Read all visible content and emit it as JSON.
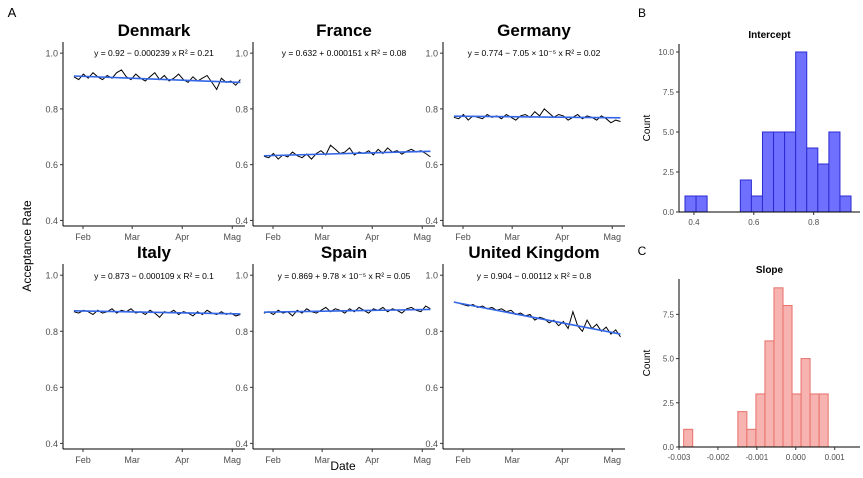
{
  "figure": {
    "panel_letters": [
      "A",
      "B",
      "C"
    ],
    "y_axis_label": "Acceptance Rate",
    "x_axis_label": "Date",
    "y_tick_labels": [
      "0.4",
      "0.6",
      "0.8",
      "1.0"
    ],
    "x_tick_labels": [
      "Feb",
      "Mar",
      "Apr",
      "Mag"
    ],
    "fit_line_color": "#3366e6",
    "series_line_color": "#000000"
  },
  "chart_data": [
    {
      "type": "line",
      "layout": "3x2 facets",
      "ylim": [
        0.38,
        1.04
      ],
      "y_ticks": [
        0.4,
        0.6,
        0.8,
        1.0
      ],
      "x_ticks": [
        "Feb",
        "Mar",
        "Apr",
        "Mag"
      ],
      "ylabel": "Acceptance Rate",
      "xlabel": "Date",
      "grid": false,
      "facets": [
        {
          "name": "Denmark",
          "equation": "y = 0.92 − 0.000239 x   R² = 0.21",
          "fit_start": 0.918,
          "fit_end": 0.895,
          "series": [
            0.915,
            0.905,
            0.925,
            0.91,
            0.93,
            0.915,
            0.905,
            0.92,
            0.91,
            0.93,
            0.94,
            0.915,
            0.905,
            0.925,
            0.91,
            0.9,
            0.915,
            0.93,
            0.905,
            0.92,
            0.9,
            0.91,
            0.925,
            0.905,
            0.895,
            0.915,
            0.9,
            0.91,
            0.92,
            0.895,
            0.87,
            0.91,
            0.895,
            0.9,
            0.885,
            0.905
          ]
        },
        {
          "name": "France",
          "equation": "y = 0.632 + 0.000151 x   R² = 0.08",
          "fit_start": 0.632,
          "fit_end": 0.648,
          "series": [
            0.63,
            0.625,
            0.64,
            0.62,
            0.635,
            0.628,
            0.645,
            0.632,
            0.625,
            0.638,
            0.62,
            0.64,
            0.65,
            0.635,
            0.67,
            0.655,
            0.64,
            0.645,
            0.66,
            0.635,
            0.645,
            0.64,
            0.65,
            0.635,
            0.655,
            0.64,
            0.66,
            0.645,
            0.65,
            0.638,
            0.648,
            0.655,
            0.645,
            0.65,
            0.64,
            0.628
          ]
        },
        {
          "name": "Germany",
          "equation": "y = 0.774 − 7.05 × 10⁻⁵ x   R² = 0.02",
          "fit_start": 0.774,
          "fit_end": 0.768,
          "series": [
            0.77,
            0.765,
            0.78,
            0.76,
            0.775,
            0.77,
            0.765,
            0.78,
            0.77,
            0.775,
            0.765,
            0.78,
            0.77,
            0.76,
            0.775,
            0.78,
            0.77,
            0.79,
            0.775,
            0.8,
            0.785,
            0.77,
            0.78,
            0.775,
            0.76,
            0.77,
            0.78,
            0.765,
            0.775,
            0.77,
            0.76,
            0.775,
            0.765,
            0.75,
            0.76,
            0.755
          ]
        },
        {
          "name": "Italy",
          "equation": "y = 0.873 − 0.000109 x   R² = 0.1",
          "fit_start": 0.873,
          "fit_end": 0.862,
          "series": [
            0.87,
            0.865,
            0.875,
            0.87,
            0.86,
            0.875,
            0.865,
            0.87,
            0.88,
            0.865,
            0.875,
            0.87,
            0.88,
            0.865,
            0.87,
            0.86,
            0.875,
            0.865,
            0.85,
            0.87,
            0.865,
            0.875,
            0.86,
            0.87,
            0.865,
            0.855,
            0.87,
            0.86,
            0.875,
            0.865,
            0.86,
            0.87,
            0.86,
            0.865,
            0.855,
            0.86
          ]
        },
        {
          "name": "Spain",
          "equation": "y = 0.869 + 9.78 × 10⁻⁵ x   R² = 0.05",
          "fit_start": 0.868,
          "fit_end": 0.878,
          "series": [
            0.865,
            0.87,
            0.86,
            0.875,
            0.865,
            0.87,
            0.855,
            0.875,
            0.865,
            0.88,
            0.87,
            0.865,
            0.875,
            0.885,
            0.87,
            0.88,
            0.875,
            0.865,
            0.88,
            0.87,
            0.885,
            0.875,
            0.865,
            0.88,
            0.875,
            0.885,
            0.87,
            0.88,
            0.875,
            0.865,
            0.88,
            0.885,
            0.875,
            0.87,
            0.89,
            0.88
          ]
        },
        {
          "name": "United Kingdom",
          "equation": "y = 0.904 − 0.00112 x   R² = 0.8",
          "fit_start": 0.904,
          "fit_end": 0.79,
          "series": [
            0.905,
            0.9,
            0.895,
            0.89,
            0.895,
            0.885,
            0.89,
            0.88,
            0.885,
            0.875,
            0.88,
            0.87,
            0.875,
            0.86,
            0.865,
            0.855,
            0.86,
            0.84,
            0.85,
            0.845,
            0.83,
            0.84,
            0.82,
            0.835,
            0.81,
            0.87,
            0.82,
            0.8,
            0.84,
            0.81,
            0.825,
            0.8,
            0.815,
            0.79,
            0.805,
            0.78
          ]
        }
      ]
    },
    {
      "type": "bar",
      "title": "Intercept",
      "xlabel": "",
      "ylabel": "Count",
      "fill": "#7070ff",
      "stroke": "#2b2bd1",
      "bin_start": 0.37,
      "bin_width": 0.037,
      "values": [
        1,
        1,
        0,
        0,
        0,
        2,
        1,
        5,
        5,
        5,
        10,
        4,
        3,
        5,
        1
      ],
      "xlim": [
        0.35,
        0.955
      ],
      "ylim": [
        0,
        10.5
      ],
      "x_ticks": [
        0.4,
        0.6,
        0.8
      ],
      "x_tick_labels": [
        "0.4",
        "0.6",
        "0.8"
      ],
      "y_ticks": [
        0,
        2.5,
        5,
        7.5,
        10
      ],
      "y_tick_labels": [
        "0.0",
        "2.5",
        "5.0",
        "7.5",
        "10.0"
      ]
    },
    {
      "type": "bar",
      "title": "Slope",
      "xlabel": "",
      "ylabel": "Count",
      "fill": "#f7b3b0",
      "stroke": "#e8706a",
      "bin_start": -0.00288,
      "bin_width": 0.000232,
      "values": [
        1,
        0,
        0,
        0,
        0,
        0,
        2,
        1,
        3,
        6,
        9,
        8,
        3,
        5,
        3,
        3
      ],
      "xlim": [
        -0.003,
        0.00165
      ],
      "ylim": [
        0,
        9.5
      ],
      "x_ticks": [
        -0.003,
        -0.002,
        -0.001,
        0,
        0.001
      ],
      "x_tick_labels": [
        "-0.003",
        "-0.002",
        "-0.001",
        "0.000",
        "0.001"
      ],
      "y_ticks": [
        0,
        2.5,
        5,
        7.5
      ],
      "y_tick_labels": [
        "0.0",
        "2.5",
        "5.0",
        "7.5"
      ]
    }
  ]
}
